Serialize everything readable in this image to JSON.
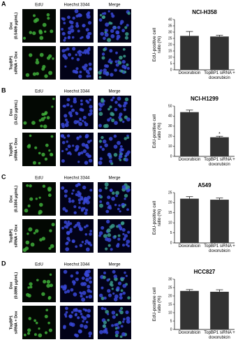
{
  "chart_data": [
    {
      "type": "bar",
      "panel": "A",
      "title": "NCI-H358",
      "image_columns": [
        "EdU",
        "Hoechst 3344",
        "Merge"
      ],
      "image_rows": [
        [
          "Dox",
          "(0.5409 μg/mL)"
        ],
        [
          "TopBP1",
          "siRNA + Dox"
        ]
      ],
      "ylabel": "EdU-positive cell ratio (%)",
      "categories": [
        "Doxorubicin",
        "TopBP1 siRNA + doxorubicin"
      ],
      "values": [
        27,
        26.5
      ],
      "errors": [
        3.5,
        1
      ],
      "color": "#333333",
      "ylim": [
        0,
        40
      ],
      "yticks": [
        0,
        5,
        10,
        15,
        20,
        25,
        30,
        35,
        40
      ]
    },
    {
      "type": "bar",
      "panel": "B",
      "title": "NCI-H1299",
      "image_columns": [
        "EdU",
        "Hoechst 3344",
        "Merge"
      ],
      "image_rows": [
        [
          "Dox",
          "(3.423 μg/mL)"
        ],
        [
          "TopBP1",
          "siRNA + Dox"
        ]
      ],
      "ylabel": "EdU-positive cell ratio (%)",
      "categories": [
        "Doxorubicin",
        "TopBP1 siRNA + doxorubicin"
      ],
      "values": [
        44,
        19
      ],
      "errors": [
        2,
        1
      ],
      "value_annotations": [
        null,
        "*"
      ],
      "color": "#333333",
      "ylim": [
        0,
        50
      ],
      "yticks": [
        0,
        10,
        20,
        30,
        40,
        50
      ]
    },
    {
      "type": "bar",
      "panel": "C",
      "title": "A549",
      "image_columns": [
        "EdU",
        "Hoechst 3344",
        "Merge"
      ],
      "image_rows": [
        [
          "Dox",
          "(0.3304 μg/mL)"
        ],
        [
          "TopBP1",
          "siRNA + Dox"
        ]
      ],
      "ylabel": "EdU-positive cell ratio (%)",
      "categories": [
        "Doxorubicin",
        "TopBP1 siRNA + doxorubicin"
      ],
      "values": [
        22,
        21.5
      ],
      "errors": [
        1,
        0.8
      ],
      "color": "#333333",
      "ylim": [
        0,
        25
      ],
      "yticks": [
        0,
        5,
        10,
        15,
        20,
        25
      ]
    },
    {
      "type": "bar",
      "panel": "D",
      "title": "HCC827",
      "image_columns": [
        "EdU",
        "Hoechst 3344",
        "Merge"
      ],
      "image_rows": [
        [
          "Dox",
          "(0.8896 μg/mL)"
        ],
        [
          "TopBP1",
          "siRNA + Dox"
        ]
      ],
      "ylabel": "EdU-positive cell ratio (%)",
      "categories": [
        "Doxorubicin",
        "TopBP1 siRNA + doxorubicin"
      ],
      "values": [
        23,
        22.5
      ],
      "errors": [
        0.8,
        1.2
      ],
      "color": "#333333",
      "ylim": [
        0,
        30
      ],
      "yticks": [
        0,
        5,
        10,
        15,
        20,
        25,
        30
      ]
    }
  ]
}
